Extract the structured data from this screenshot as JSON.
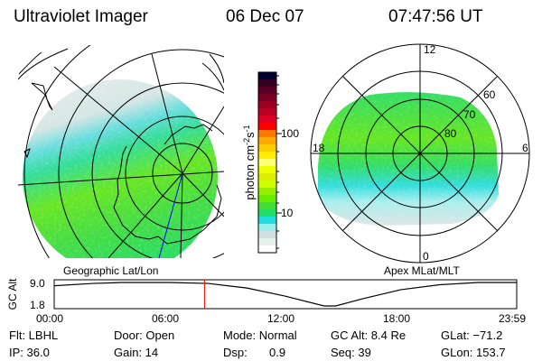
{
  "header": {
    "instrument": "Ultraviolet Imager",
    "date": "06 Dec 07",
    "time": "07:47:56 UT"
  },
  "left_plot": {
    "label": "Geographic Lat/Lon"
  },
  "right_plot": {
    "label": "Apex MLat/MLT",
    "mlt_labels": [
      "12",
      "18",
      "6",
      "0"
    ],
    "lat_labels": [
      "60",
      "70",
      "80"
    ]
  },
  "colorbar": {
    "label_base": "photon cm",
    "label_exp1": "-2",
    "label_mid": "s",
    "label_exp2": "-1",
    "tick_labels": [
      "100",
      "10"
    ],
    "colors": [
      "#000033",
      "#330022",
      "#550022",
      "#770022",
      "#990022",
      "#bb0022",
      "#dd0022",
      "#ff0000",
      "#ff7700",
      "#ffaa00",
      "#ffcc00",
      "#ffee00",
      "#ffff77",
      "#eeff00",
      "#ddee00",
      "#ccff00",
      "#99ee00",
      "#66ee00",
      "#44dd33",
      "#22dd66",
      "#22dddd",
      "#99eeee",
      "#d0e0e0",
      "#e8f0ec",
      "#ffffff"
    ]
  },
  "timeline": {
    "ylabel": "GC Alt",
    "y_ticks": [
      "9.0",
      "1.8"
    ],
    "x_ticks": [
      "00:00",
      "06:00",
      "12:00",
      "18:00",
      "23:59"
    ],
    "current_hour": 7.8,
    "marker_color": "#ff0000",
    "orbit_alt": [
      [
        0,
        8.0
      ],
      [
        2,
        8.7
      ],
      [
        3.5,
        9.0
      ],
      [
        6,
        9.0
      ],
      [
        8,
        8.7
      ],
      [
        10,
        7.3
      ],
      [
        12,
        4.8
      ],
      [
        14,
        1.8
      ],
      [
        14.6,
        1.8
      ],
      [
        16,
        4.0
      ],
      [
        18,
        6.8
      ],
      [
        20,
        8.3
      ],
      [
        22,
        9.0
      ],
      [
        23.98,
        9.0
      ]
    ],
    "y_range": [
      1.8,
      9.0
    ]
  },
  "status": {
    "flt": "Flt: LBHL",
    "door": "Door: Open",
    "mode": "Mode: Normal",
    "gc_alt": "GC Alt: 8.4 Re",
    "glat": "GLat: −71.2",
    "ip": "IP: 36.0",
    "gain": "Gain: 14",
    "dsp_label": "Dsp:",
    "dsp_value": "0.9",
    "seq": "Seq: 39",
    "glon": "GLon: 153.7"
  }
}
